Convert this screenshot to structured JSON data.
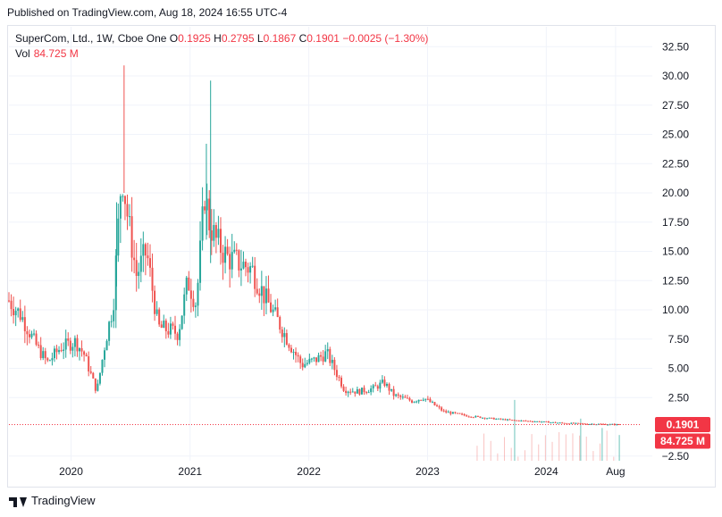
{
  "published": "Published on TradingView.com, Aug 18, 2024 16:55 UTC-4",
  "legend": {
    "symbol": "SuperCom, Ltd., 1W, Cboe One",
    "o_label": "O",
    "o_value": "0.1925",
    "h_label": "H",
    "h_value": "0.2795",
    "l_label": "L",
    "l_value": "0.1867",
    "c_label": "C",
    "c_value": "0.1901",
    "change": "−0.0025 (−1.30%)",
    "vol_label": "Vol",
    "vol_value": "84.725 M"
  },
  "footer": {
    "brand": "TradingView",
    "logo_icon": "tradingview-logo-icon"
  },
  "colors": {
    "up": "#26a69a",
    "down": "#ef5350",
    "grid": "#f0f3fa",
    "text": "#131722",
    "price_line": "#f23645"
  },
  "chart_data": {
    "type": "candlestick",
    "y_ticks": [
      "32.50",
      "30.00",
      "27.50",
      "25.00",
      "22.50",
      "20.00",
      "17.50",
      "15.00",
      "12.50",
      "10.00",
      "7.50",
      "5.00",
      "2.50",
      "−2.50"
    ],
    "y_tick_values": [
      32.5,
      30,
      27.5,
      25,
      22.5,
      20,
      17.5,
      15,
      12.5,
      10,
      7.5,
      5,
      2.5,
      -2.5
    ],
    "ylim": [
      -2.9,
      34.2
    ],
    "x_ticks": [
      "2020",
      "2021",
      "2022",
      "2023",
      "2024",
      "Aug"
    ],
    "x_tick_dates": [
      "2020-01-01",
      "2021-01-01",
      "2022-01-01",
      "2023-01-01",
      "2024-01-01",
      "2024-08-01"
    ],
    "x_range": [
      "2019-06-24",
      "2024-10-20"
    ],
    "last_price": "0.1901",
    "last_price_value": 0.1901,
    "last_volume": "84.725 M",
    "series": [
      {
        "name": "Price",
        "points": [
          [
            "2019-06-24",
            10.8
          ],
          [
            "2019-08-01",
            9.5
          ],
          [
            "2019-09-15",
            7.0
          ],
          [
            "2019-10-20",
            5.5
          ],
          [
            "2019-12-01",
            6.8
          ],
          [
            "2020-01-15",
            7.3
          ],
          [
            "2020-02-10",
            6.2
          ],
          [
            "2020-03-20",
            3.0
          ],
          [
            "2020-04-15",
            7.2
          ],
          [
            "2020-05-10",
            10.5
          ],
          [
            "2020-06-05",
            22.0
          ],
          [
            "2020-06-25",
            17.5
          ],
          [
            "2020-07-20",
            13.0
          ],
          [
            "2020-08-20",
            15.0
          ],
          [
            "2020-09-25",
            8.5
          ],
          [
            "2020-10-25",
            8.3
          ],
          [
            "2020-11-25",
            8.0
          ],
          [
            "2020-12-25",
            12.5
          ],
          [
            "2021-01-20",
            10.5
          ],
          [
            "2021-02-15",
            20.0
          ],
          [
            "2021-03-01",
            17.5
          ],
          [
            "2021-03-20",
            16.0
          ],
          [
            "2021-04-25",
            14.5
          ],
          [
            "2021-06-01",
            14.0
          ],
          [
            "2021-07-10",
            13.5
          ],
          [
            "2021-08-20",
            11.0
          ],
          [
            "2021-09-25",
            9.2
          ],
          [
            "2021-11-05",
            7.0
          ],
          [
            "2021-12-10",
            5.3
          ],
          [
            "2022-01-20",
            5.7
          ],
          [
            "2022-02-25",
            6.3
          ],
          [
            "2022-03-20",
            5.0
          ],
          [
            "2022-04-20",
            3.2
          ],
          [
            "2022-06-01",
            3.0
          ],
          [
            "2022-07-20",
            3.3
          ],
          [
            "2022-08-20",
            3.8
          ],
          [
            "2022-09-20",
            2.7
          ],
          [
            "2022-11-15",
            2.2
          ],
          [
            "2022-12-20",
            2.5
          ],
          [
            "2023-02-20",
            1.3
          ],
          [
            "2023-05-01",
            0.95
          ],
          [
            "2023-07-20",
            0.7
          ],
          [
            "2023-09-25",
            0.55
          ],
          [
            "2023-12-10",
            0.45
          ],
          [
            "2024-02-20",
            0.32
          ],
          [
            "2024-04-20",
            0.26
          ],
          [
            "2024-06-01",
            0.24
          ],
          [
            "2024-08-12",
            0.19
          ]
        ]
      },
      {
        "name": "Vol",
        "points": [
          [
            "2023-09-25",
            4.8
          ],
          [
            "2024-04-15",
            3.2
          ],
          [
            "2024-06-20",
            2.4
          ],
          [
            "2024-08-12",
            1.8
          ]
        ]
      }
    ]
  }
}
